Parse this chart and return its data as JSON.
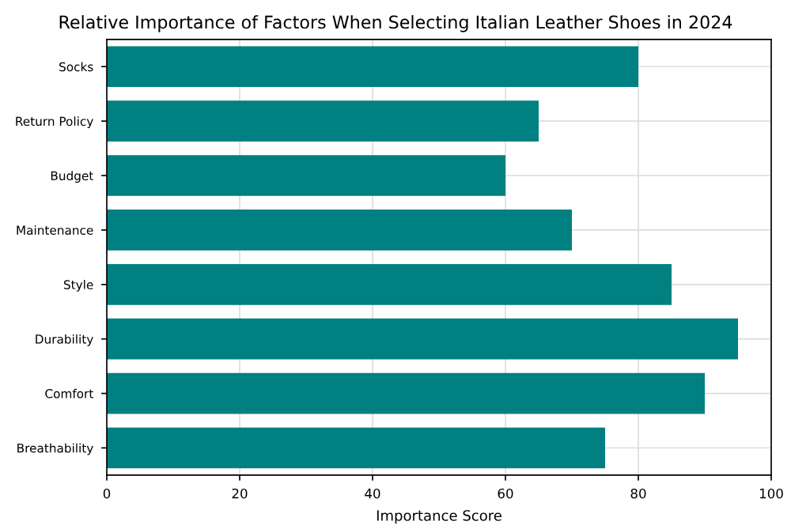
{
  "chart_data": {
    "type": "bar",
    "orientation": "horizontal",
    "title": "Relative Importance of Factors When Selecting Italian Leather Shoes in 2024",
    "xlabel": "Importance Score",
    "categories": [
      "Socks",
      "Return Policy",
      "Budget",
      "Maintenance",
      "Style",
      "Durability",
      "Comfort",
      "Breathability"
    ],
    "values": [
      80,
      65,
      60,
      70,
      85,
      95,
      90,
      75
    ],
    "color": "#008080",
    "xlim": [
      0,
      100
    ],
    "xticks": [
      0,
      20,
      40,
      60,
      80,
      100
    ],
    "grid": true
  }
}
